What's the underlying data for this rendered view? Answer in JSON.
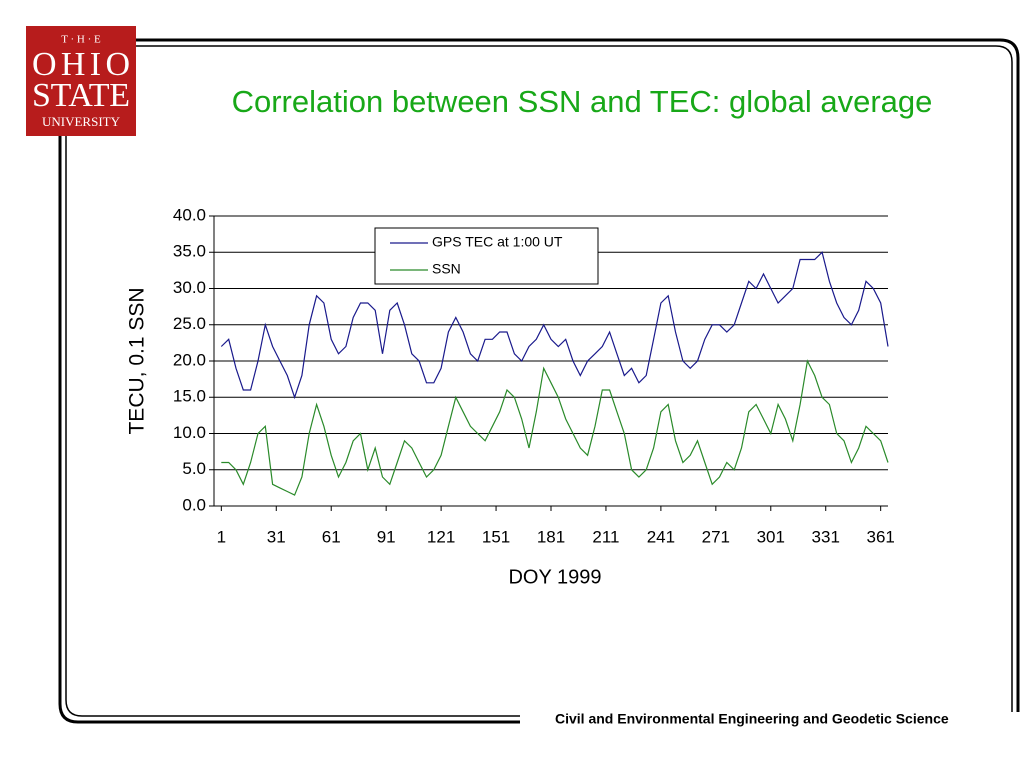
{
  "logo": {
    "line1": "T · H · E",
    "line2": "OHIO",
    "line3": "STATE",
    "line4": "UNIVERSITY"
  },
  "title": "Correlation between SSN and TEC: global average",
  "footer": "Civil and Environmental Engineering and Geodetic Science",
  "chart_data": {
    "type": "line",
    "x_label": "DOY 1999",
    "y_label": "TECU,  0.1 SSN",
    "x": [
      1,
      5,
      9,
      13,
      17,
      21,
      25,
      29,
      33,
      37,
      41,
      45,
      49,
      53,
      57,
      61,
      65,
      69,
      73,
      77,
      81,
      85,
      89,
      93,
      97,
      101,
      105,
      109,
      113,
      117,
      121,
      125,
      129,
      133,
      137,
      141,
      145,
      149,
      153,
      157,
      161,
      165,
      169,
      173,
      177,
      181,
      185,
      189,
      193,
      197,
      201,
      205,
      209,
      213,
      217,
      221,
      225,
      229,
      233,
      237,
      241,
      245,
      249,
      253,
      257,
      261,
      265,
      269,
      273,
      277,
      281,
      285,
      289,
      293,
      297,
      301,
      305,
      309,
      313,
      317,
      321,
      325,
      329,
      333,
      337,
      341,
      345,
      349,
      353,
      357,
      361,
      365
    ],
    "series": [
      {
        "name": "GPS TEC at 1:00 UT",
        "color": "#1a1a8c",
        "values": [
          22,
          23,
          19,
          16,
          16,
          20,
          25,
          22,
          20,
          18,
          15,
          18,
          25,
          29,
          28,
          23,
          21,
          22,
          26,
          28,
          28,
          27,
          21,
          27,
          28,
          25,
          21,
          20,
          17,
          17,
          19,
          24,
          26,
          24,
          21,
          20,
          23,
          23,
          24,
          24,
          21,
          20,
          22,
          23,
          25,
          23,
          22,
          23,
          20,
          18,
          20,
          21,
          22,
          24,
          21,
          18,
          19,
          17,
          18,
          23,
          28,
          29,
          24,
          20,
          19,
          20,
          23,
          25,
          25,
          24,
          25,
          28,
          31,
          30,
          32,
          30,
          28,
          29,
          30,
          34,
          34,
          34,
          35,
          31,
          28,
          26,
          25,
          27,
          31,
          30,
          28,
          22
        ]
      },
      {
        "name": "SSN",
        "color": "#2a8a2a",
        "values": [
          6,
          6,
          5,
          3,
          6,
          10,
          11,
          3,
          2.5,
          2,
          1.5,
          4,
          10,
          14,
          11,
          7,
          4,
          6,
          9,
          10,
          5,
          8,
          4,
          3,
          6,
          9,
          8,
          6,
          4,
          5,
          7,
          11,
          15,
          13,
          11,
          10,
          9,
          11,
          13,
          16,
          15,
          12,
          8,
          13,
          19,
          17,
          15,
          12,
          10,
          8,
          7,
          11,
          16,
          16,
          13,
          10,
          5,
          4,
          5,
          8,
          13,
          14,
          9,
          6,
          7,
          9,
          6,
          3,
          4,
          6,
          5,
          8,
          13,
          14,
          12,
          10,
          14,
          12,
          9,
          14,
          20,
          18,
          15,
          14,
          10,
          9,
          6,
          8,
          11,
          10,
          9,
          6
        ]
      }
    ],
    "xlim": [
      -3,
      365
    ],
    "xticks": [
      1,
      31,
      61,
      91,
      121,
      151,
      181,
      211,
      241,
      271,
      301,
      331,
      361
    ],
    "ylim": [
      0,
      40
    ],
    "yticks": [
      {
        "value": 0,
        "label": "0.0"
      },
      {
        "value": 5,
        "label": "5.0"
      },
      {
        "value": 10,
        "label": "10.0"
      },
      {
        "value": 15,
        "label": "15.0"
      },
      {
        "value": 20,
        "label": "20.0"
      },
      {
        "value": 25,
        "label": "25.0"
      },
      {
        "value": 30,
        "label": "30.0"
      },
      {
        "value": 35,
        "label": "35.0"
      },
      {
        "value": 40,
        "label": "40.0"
      }
    ],
    "grid": true,
    "legend": "top-center"
  }
}
